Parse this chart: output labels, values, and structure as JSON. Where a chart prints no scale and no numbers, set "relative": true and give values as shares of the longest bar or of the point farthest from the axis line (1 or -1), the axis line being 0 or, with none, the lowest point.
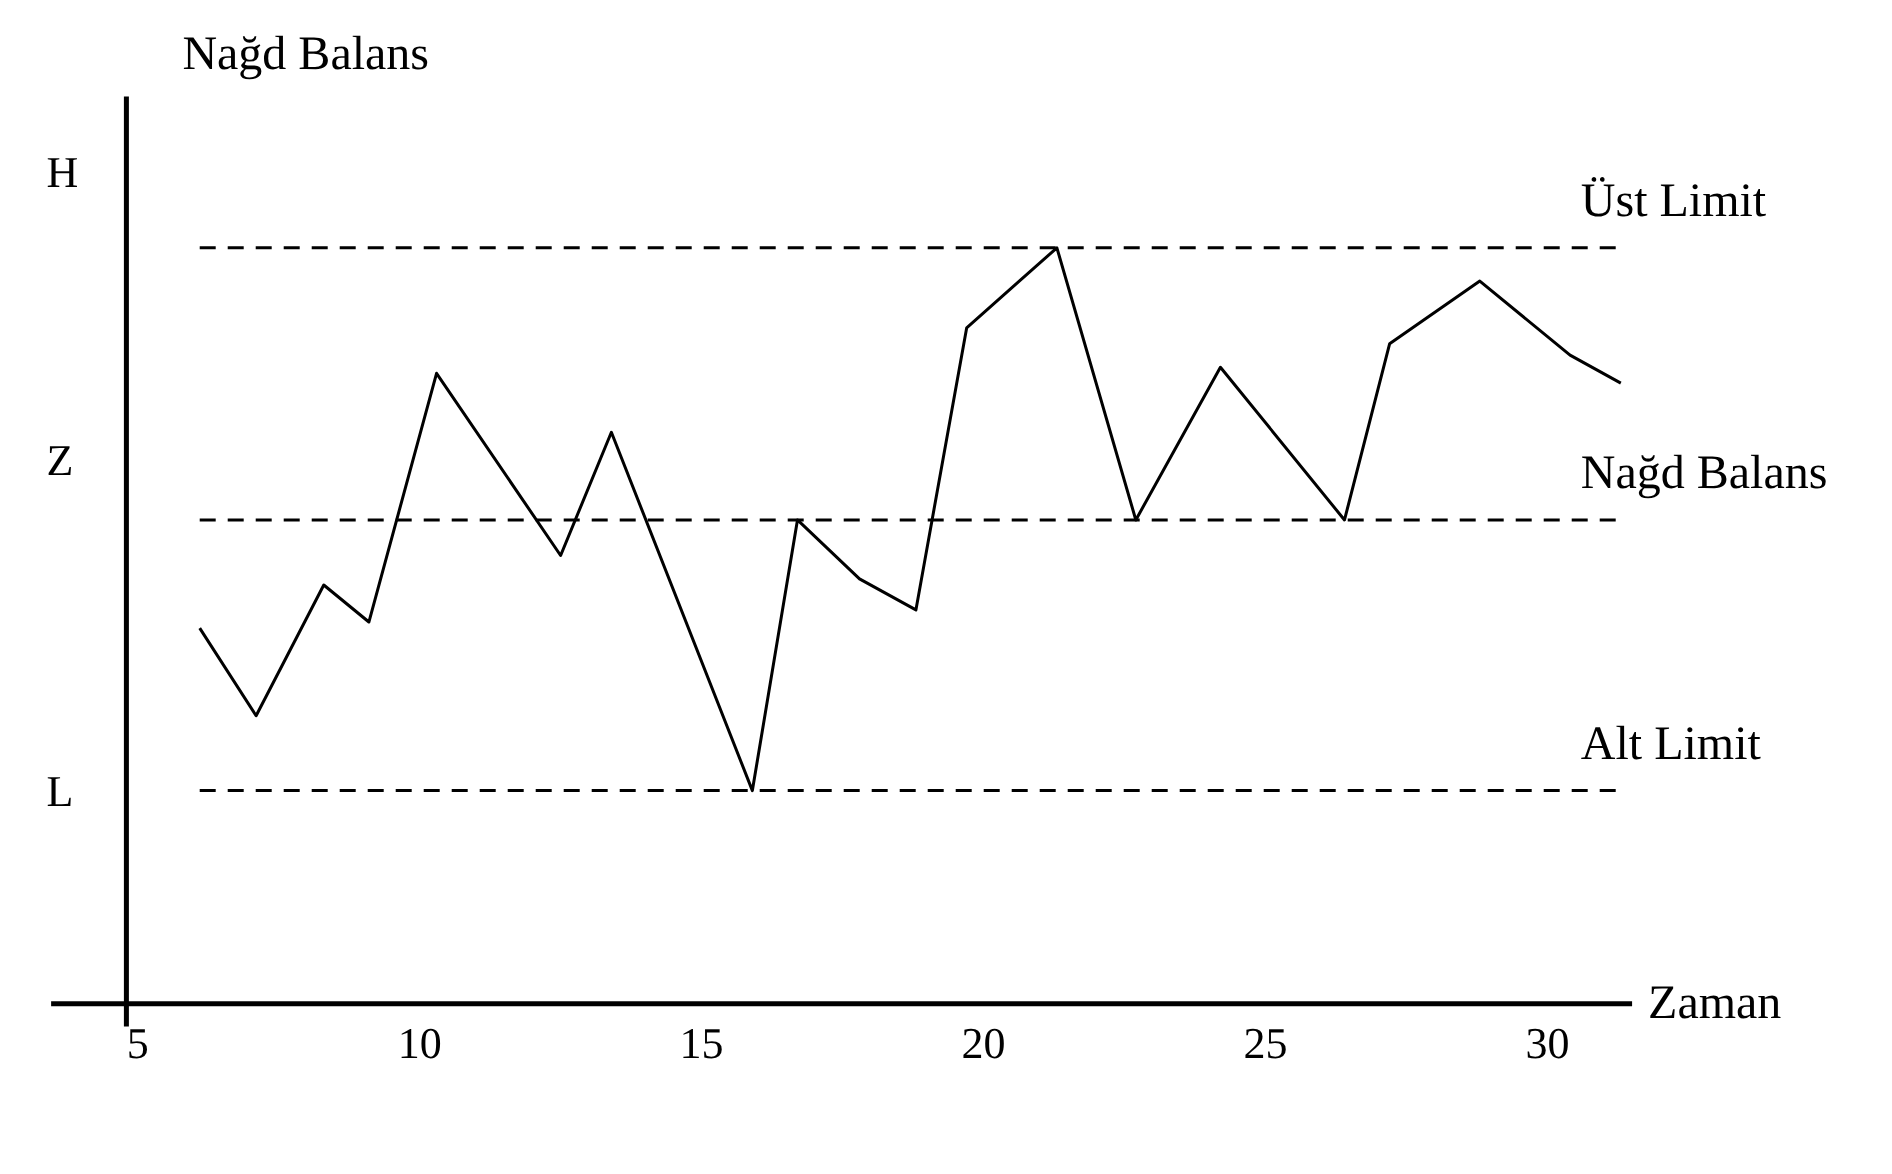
{
  "chart_data": {
    "type": "line",
    "relative": true,
    "ylabel": "Nağd Balans",
    "xlabel": "Zaman",
    "x": [
      6.1,
      7.1,
      8.3,
      9.1,
      10.3,
      12.5,
      13.4,
      15.9,
      16.7,
      17.8,
      18.8,
      19.7,
      21.3,
      22.7,
      24.2,
      26.4,
      27.2,
      28.8,
      30.4,
      31.3
    ],
    "series": [
      {
        "color": "#000000",
        "values": [
          0.497,
          0.381,
          0.554,
          0.505,
          0.834,
          0.593,
          0.756,
          0.282,
          0.64,
          0.562,
          0.521,
          0.894,
          1.0,
          0.64,
          0.842,
          0.64,
          0.873,
          0.956,
          0.858,
          0.821
        ]
      }
    ],
    "xlim": [
      4.8,
      31.5
    ],
    "xticks": [
      5,
      10,
      15,
      20,
      25,
      30
    ],
    "ref_lines": [
      {
        "axis": "y",
        "value": 1.0,
        "label": "Üst Limit",
        "line_style": "dashed",
        "color": "#000000"
      },
      {
        "axis": "y",
        "value": 0.64,
        "label": "Nağd Balans",
        "line_style": "dashed",
        "color": "#000000"
      },
      {
        "axis": "y",
        "value": 0.282,
        "label": "Alt Limit",
        "line_style": "dashed",
        "color": "#000000"
      }
    ],
    "annotations": [
      "H",
      "Z",
      "L"
    ],
    "grid": false,
    "marker": "none",
    "line_style": "solid"
  }
}
